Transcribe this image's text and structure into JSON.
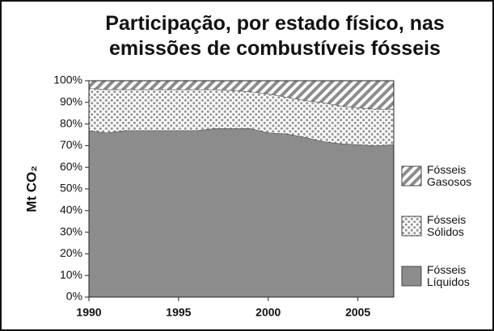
{
  "chart_data": {
    "type": "stacked_area",
    "title": "Participação, por estado físico, nas emissões de combustíveis fósseis",
    "ylabel": "Mt CO₂",
    "x": [
      1990,
      1991,
      1992,
      1993,
      1994,
      1995,
      1996,
      1997,
      1998,
      1999,
      2000,
      2001,
      2002,
      2003,
      2004,
      2005,
      2006,
      2007
    ],
    "xlim": [
      1990,
      2007
    ],
    "xticks": [
      1990,
      1995,
      2000,
      2005
    ],
    "ylim": [
      0,
      100
    ],
    "yticks": [
      {
        "value": 0,
        "label": "0%"
      },
      {
        "value": 10,
        "label": "10%"
      },
      {
        "value": 20,
        "label": "20%"
      },
      {
        "value": 30,
        "label": "30%"
      },
      {
        "value": 40,
        "label": "40%"
      },
      {
        "value": 50,
        "label": "50%"
      },
      {
        "value": 60,
        "label": "60%"
      },
      {
        "value": 70,
        "label": "70%"
      },
      {
        "value": 80,
        "label": "80%"
      },
      {
        "value": 90,
        "label": "90%"
      },
      {
        "value": 100,
        "label": "100%"
      }
    ],
    "series": [
      {
        "name": "Fósseis Líquidos",
        "color": "#8c8c8c",
        "values": [
          77,
          76,
          77,
          77,
          77,
          77,
          77,
          78,
          78,
          78,
          76,
          75.5,
          74,
          72,
          71,
          70.5,
          70,
          70.5
        ]
      },
      {
        "name": "Fósseis Sólidos",
        "color": "#a0a0a0",
        "values": [
          19.5,
          20,
          19,
          19,
          19,
          19,
          19,
          18,
          17.5,
          17,
          18,
          17,
          17,
          18,
          17.5,
          17,
          17,
          16.5
        ]
      },
      {
        "name": "Fósseis Gasosos",
        "color": "#8c8c8c",
        "values": [
          3.5,
          4,
          4,
          4,
          4,
          4,
          4,
          4,
          4.5,
          5,
          6,
          7.5,
          9,
          10,
          11.5,
          12.5,
          13,
          13
        ]
      }
    ]
  }
}
